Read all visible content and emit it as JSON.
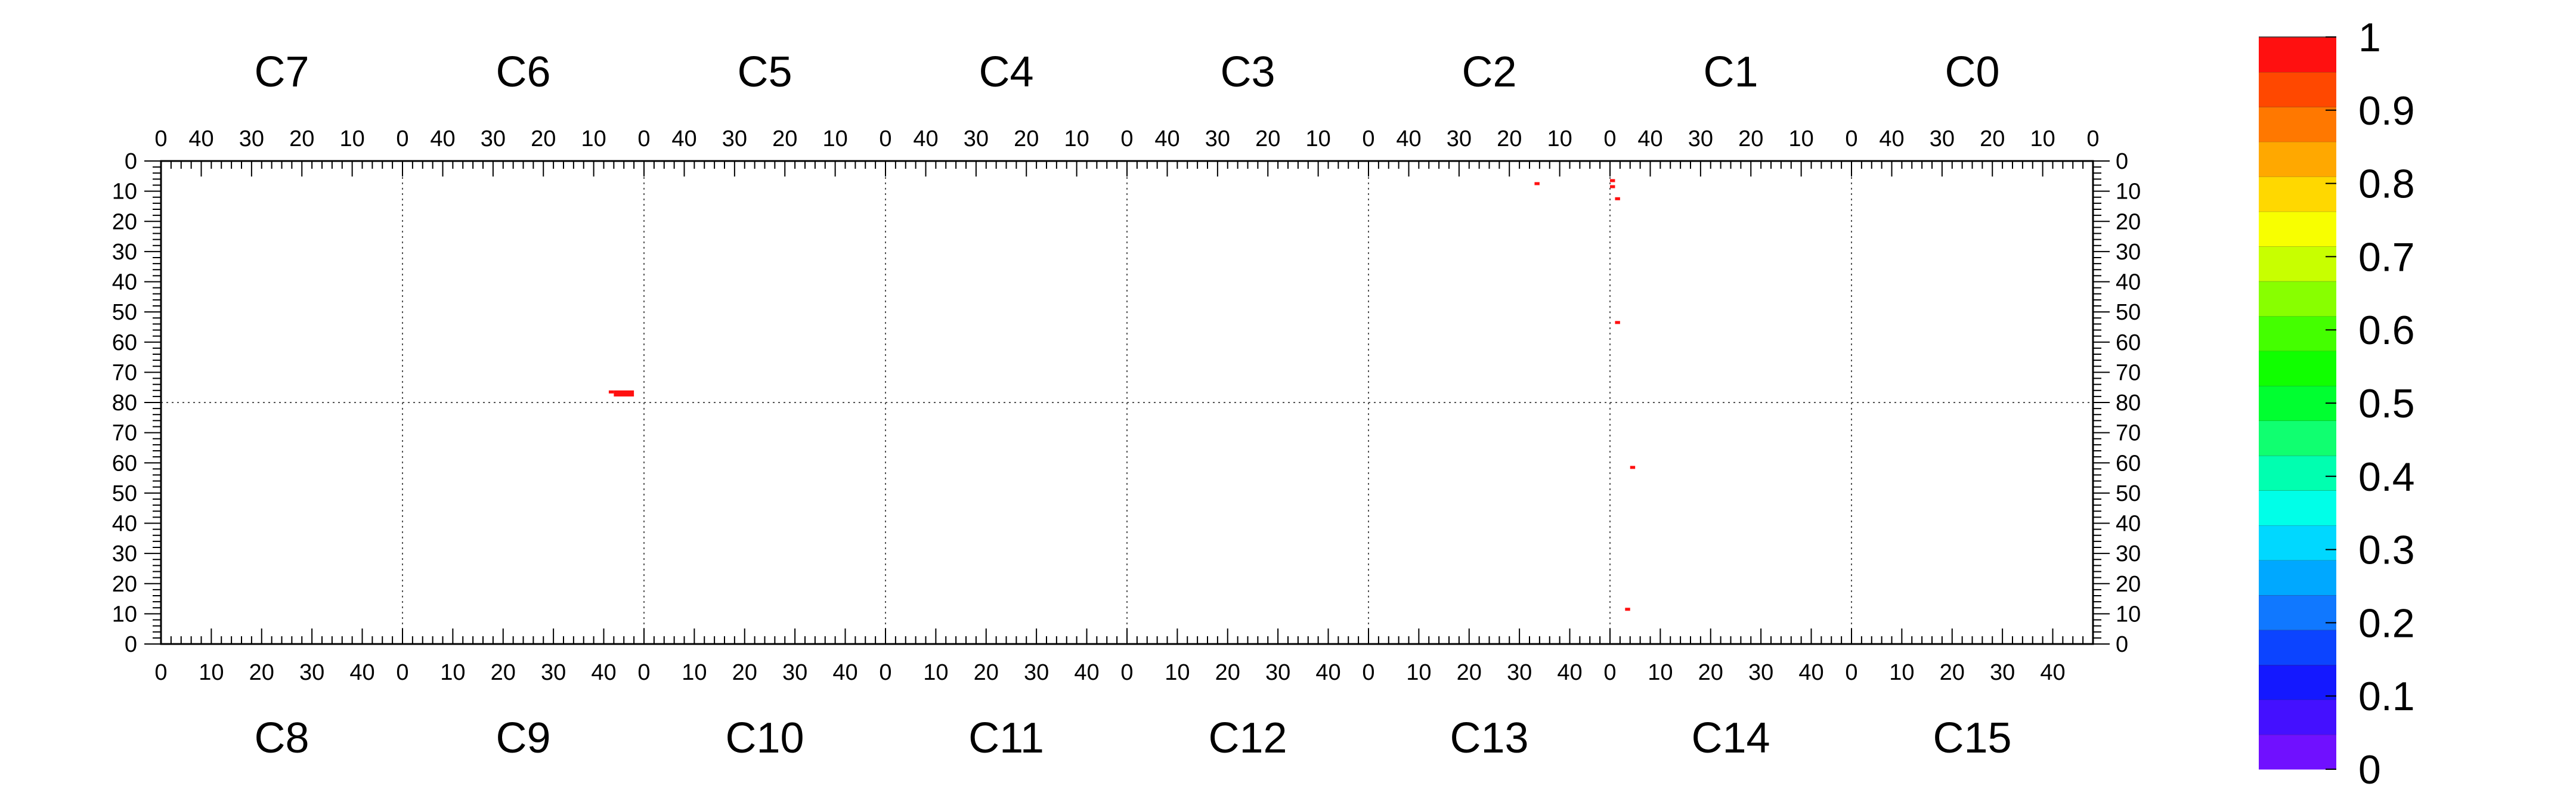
{
  "chart_data": {
    "type": "heatmap",
    "top_sections": [
      "C7",
      "C6",
      "C5",
      "C4",
      "C3",
      "C2",
      "C1",
      "C0"
    ],
    "bottom_sections": [
      "C8",
      "C9",
      "C10",
      "C11",
      "C12",
      "C13",
      "C14",
      "C15"
    ],
    "x_ticks_top": [
      "40",
      "30",
      "20",
      "10",
      "0"
    ],
    "x_ticks_bottom": [
      "0",
      "10",
      "20",
      "30",
      "40"
    ],
    "y_ticks_upper": [
      "0",
      "10",
      "20",
      "30",
      "40",
      "50",
      "60",
      "70",
      "80"
    ],
    "y_ticks_lower": [
      "70",
      "60",
      "50",
      "40",
      "30",
      "20",
      "10",
      "0"
    ],
    "x_range": [
      0,
      48
    ],
    "y_range": [
      0,
      80
    ],
    "grid": true,
    "colorbar": {
      "ticks": [
        "0",
        "0.1",
        "0.2",
        "0.3",
        "0.4",
        "0.5",
        "0.6",
        "0.7",
        "0.8",
        "0.9",
        "1"
      ],
      "range": [
        0,
        1
      ],
      "colors": [
        "#7010ff",
        "#4410ff",
        "#1418ff",
        "#0c44ff",
        "#1078ff",
        "#00a8ff",
        "#00d8ff",
        "#00ffe8",
        "#00ffb0",
        "#10ff70",
        "#00ff30",
        "#10ff00",
        "#44ff00",
        "#88ff00",
        "#c8ff00",
        "#f8ff00",
        "#ffd800",
        "#ffa800",
        "#ff7800",
        "#ff4800",
        "#ff1010"
      ]
    },
    "cells": [
      {
        "half": "upper",
        "section": "C6",
        "x": 2,
        "y": 76,
        "w": 4,
        "h": 2,
        "value": 1
      },
      {
        "half": "upper",
        "section": "C6",
        "x": 6,
        "y": 76,
        "w": 1,
        "h": 1,
        "value": 1
      },
      {
        "half": "upper",
        "section": "C2",
        "x": 14,
        "y": 7,
        "w": 1,
        "h": 1,
        "value": 1
      },
      {
        "half": "upper",
        "section": "C1",
        "x": 47,
        "y": 6,
        "w": 1,
        "h": 1,
        "value": 1
      },
      {
        "half": "upper",
        "section": "C1",
        "x": 47,
        "y": 8,
        "w": 1,
        "h": 1,
        "value": 1
      },
      {
        "half": "upper",
        "section": "C1",
        "x": 46,
        "y": 12,
        "w": 1,
        "h": 1,
        "value": 1
      },
      {
        "half": "upper",
        "section": "C1",
        "x": 46,
        "y": 53,
        "w": 1,
        "h": 1,
        "value": 1
      },
      {
        "half": "lower",
        "section": "C14",
        "x": 4,
        "y": 58,
        "w": 1,
        "h": 1,
        "value": 1
      },
      {
        "half": "lower",
        "section": "C14",
        "x": 3,
        "y": 11,
        "w": 1,
        "h": 1,
        "value": 1
      }
    ]
  }
}
